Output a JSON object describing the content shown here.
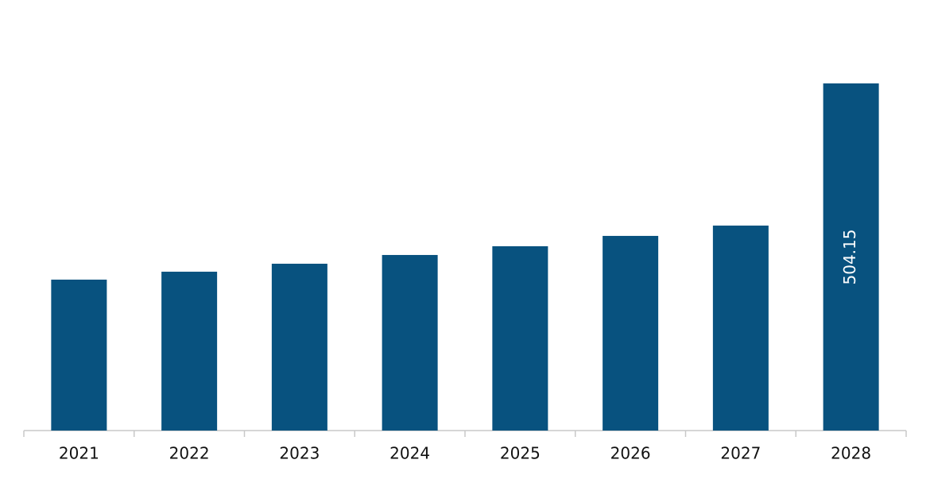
{
  "chart_data": {
    "type": "bar",
    "categories": [
      "2021",
      "2022",
      "2023",
      "2024",
      "2025",
      "2026",
      "2027",
      "2028"
    ],
    "values": [
      219.2,
      230.7,
      242.3,
      255.0,
      267.7,
      282.7,
      297.7,
      504.15
    ],
    "labeled": [
      7
    ],
    "color": "#08527f"
  }
}
